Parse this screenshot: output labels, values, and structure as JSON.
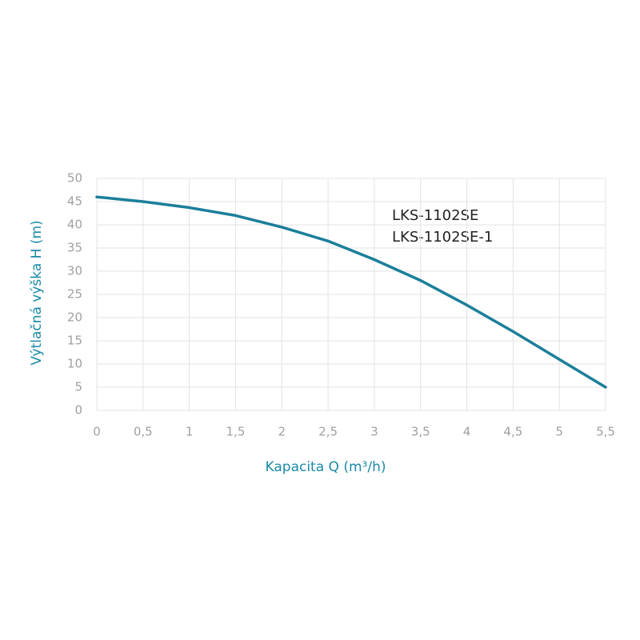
{
  "chart_data": {
    "type": "line",
    "x": [
      0,
      0.5,
      1,
      1.5,
      2,
      2.5,
      3,
      3.5,
      4,
      4.5,
      5,
      5.5
    ],
    "values": [
      46,
      45,
      43.7,
      42,
      39.5,
      36.5,
      32.5,
      28,
      22.7,
      17,
      11,
      5
    ],
    "color": "#1b7f9a",
    "xlabel": "Kapacita Q (m³/h)",
    "ylabel": "Výtlačná výška H (m)",
    "annotations": [
      "LKS-1102SE",
      "LKS-1102SE-1"
    ],
    "xlim": [
      0,
      5.5
    ],
    "xticks": [
      0,
      {
        "value": 0.5,
        "label": "0,5"
      },
      1,
      {
        "value": 1.5,
        "label": "1,5"
      },
      2,
      {
        "value": 2.5,
        "label": "2,5"
      },
      3,
      {
        "value": 3.5,
        "label": "3,5"
      },
      4,
      {
        "value": 4.5,
        "label": "4,5"
      },
      5,
      {
        "value": 5.5,
        "label": "5,5"
      }
    ],
    "ylim": [
      0,
      50
    ],
    "yticks": [
      0,
      5,
      10,
      15,
      20,
      25,
      30,
      35,
      40,
      45,
      50
    ],
    "grid": true
  }
}
